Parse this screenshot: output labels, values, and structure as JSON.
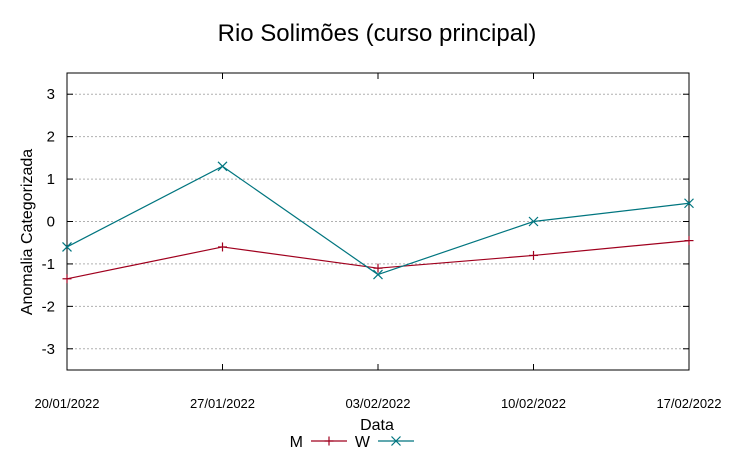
{
  "chart_data": {
    "type": "line",
    "title": "Rio Solimões (curso principal)",
    "xlabel": "Data",
    "ylabel": "Anomalia Categorizada",
    "categories": [
      "20/01/2022",
      "27/01/2022",
      "03/02/2022",
      "10/02/2022",
      "17/02/2022"
    ],
    "ylim": [
      -3.5,
      3.5
    ],
    "yticks": [
      -3,
      -2,
      -1,
      0,
      1,
      2,
      3
    ],
    "grid": true,
    "legend_position": "bottom-center",
    "series": [
      {
        "name": "M",
        "color": "#a0001e",
        "marker": "plus",
        "values": [
          -1.35,
          -0.6,
          -1.1,
          -0.8,
          -0.45
        ]
      },
      {
        "name": "W",
        "color": "#00757f",
        "marker": "cross",
        "values": [
          -0.6,
          1.3,
          -1.25,
          0.0,
          0.43
        ]
      }
    ]
  }
}
